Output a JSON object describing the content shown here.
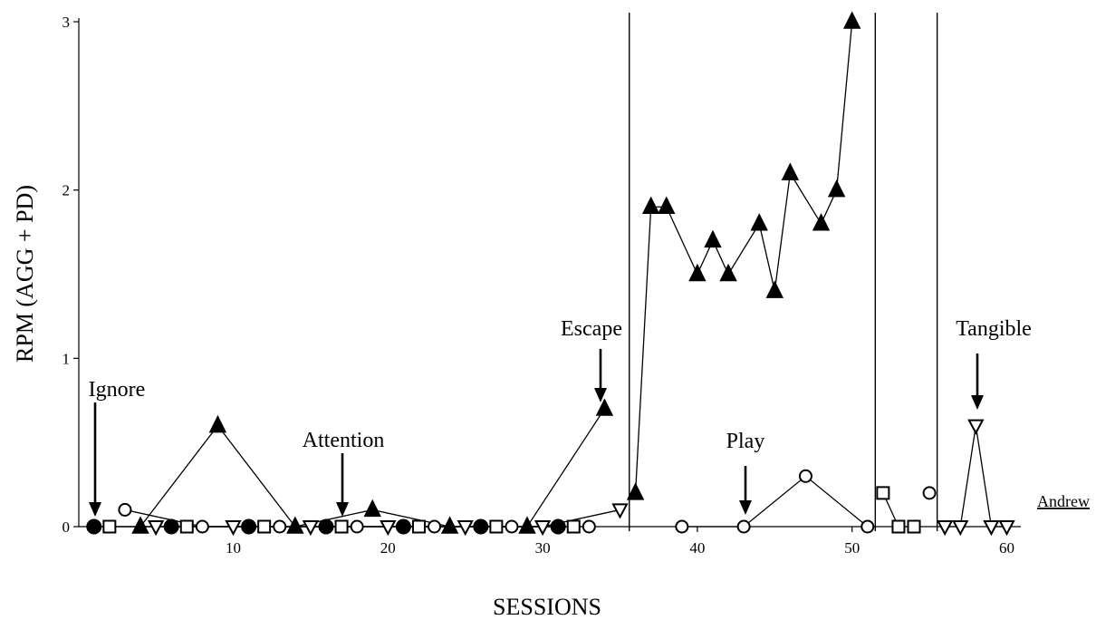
{
  "chart_data": {
    "type": "line",
    "title": "",
    "xlabel": "SESSIONS",
    "ylabel": "RPM (AGG + PD)",
    "xlim": [
      0,
      62
    ],
    "ylim": [
      0,
      3
    ],
    "xticks": [
      10,
      20,
      30,
      40,
      50,
      60
    ],
    "yticks": [
      0,
      1,
      2,
      3
    ],
    "grid": false,
    "legend": "none",
    "participant": "Andrew",
    "phase_lines": [
      35.6,
      51.5,
      55.5
    ],
    "annotations": [
      {
        "text": "Ignore",
        "target_x": 1,
        "target_y": 0
      },
      {
        "text": "Attention",
        "target_x": 17,
        "target_y": 0
      },
      {
        "text": "Escape",
        "target_x": 34,
        "target_y": 0.7
      },
      {
        "text": "Play",
        "target_x": 43,
        "target_y": 0
      },
      {
        "text": "Tangible",
        "target_x": 58,
        "target_y": 0.6
      }
    ],
    "series": [
      {
        "name": "Ignore",
        "marker": "filled-circle",
        "segments": [
          [
            [
              1,
              0
            ],
            [
              6,
              0
            ],
            [
              11,
              0
            ],
            [
              16,
              0
            ],
            [
              21,
              0
            ],
            [
              26,
              0
            ],
            [
              31,
              0
            ]
          ]
        ]
      },
      {
        "name": "Play",
        "marker": "open-square",
        "segments": [
          [
            [
              2,
              0
            ],
            [
              7,
              0
            ],
            [
              12,
              0
            ],
            [
              17,
              0
            ],
            [
              22,
              0
            ],
            [
              27,
              0
            ],
            [
              32,
              0
            ]
          ],
          [
            [
              52,
              0.2
            ],
            [
              53,
              0
            ],
            [
              54,
              0
            ]
          ]
        ]
      },
      {
        "name": "Attention",
        "marker": "open-circle",
        "segments": [
          [
            [
              3,
              0.1
            ],
            [
              8,
              0
            ],
            [
              13,
              0
            ],
            [
              18,
              0
            ],
            [
              23,
              0
            ],
            [
              28,
              0
            ],
            [
              33,
              0
            ]
          ],
          [
            [
              39,
              0
            ],
            [
              43,
              0
            ],
            [
              47,
              0.3
            ],
            [
              51,
              0
            ]
          ],
          [
            [
              55,
              0.2
            ]
          ]
        ]
      },
      {
        "name": "Escape",
        "marker": "filled-triangle",
        "segments": [
          [
            [
              4,
              0
            ],
            [
              9,
              0.6
            ],
            [
              14,
              0
            ],
            [
              19,
              0.1
            ],
            [
              24,
              0
            ],
            [
              29,
              0
            ],
            [
              34,
              0.7
            ]
          ],
          [
            [
              36,
              0.2
            ],
            [
              37,
              1.9
            ],
            [
              38,
              1.9
            ],
            [
              40,
              1.5
            ],
            [
              41,
              1.7
            ],
            [
              42,
              1.5
            ],
            [
              44,
              1.8
            ],
            [
              45,
              1.4
            ],
            [
              46,
              2.1
            ],
            [
              48,
              1.8
            ],
            [
              49,
              2.0
            ],
            [
              50,
              3.0
            ]
          ]
        ]
      },
      {
        "name": "Tangible",
        "marker": "open-triangle-down",
        "segments": [
          [
            [
              5,
              0
            ],
            [
              10,
              0
            ],
            [
              15,
              0
            ],
            [
              20,
              0
            ],
            [
              25,
              0
            ],
            [
              30,
              0
            ],
            [
              35,
              0.1
            ]
          ],
          [
            [
              56,
              0
            ],
            [
              57,
              0
            ],
            [
              58,
              0.6
            ],
            [
              59,
              0
            ],
            [
              60,
              0
            ]
          ]
        ]
      }
    ]
  }
}
